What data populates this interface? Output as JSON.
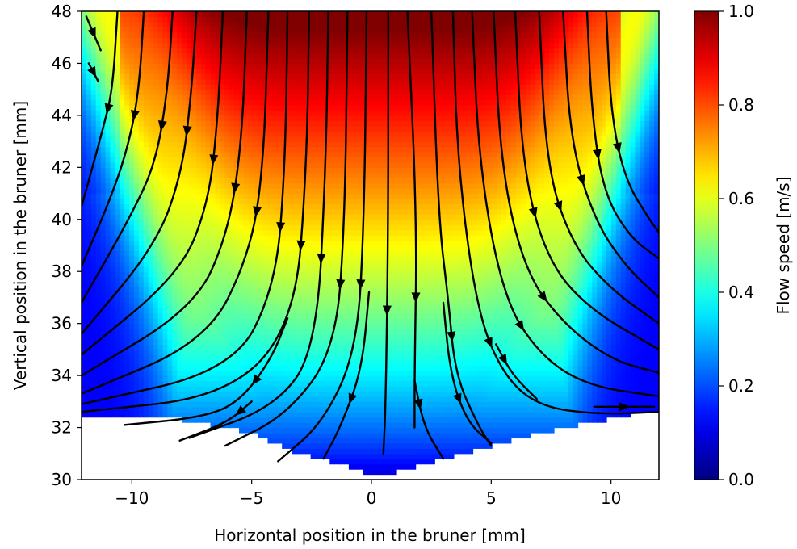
{
  "chart_data": {
    "type": "heatmap",
    "title": "",
    "xlabel": "Horizontal position in the bruner [mm]",
    "ylabel": "Vertical position in the bruner [mm]",
    "xlim": [
      -12.1,
      12.0
    ],
    "ylim": [
      30,
      48
    ],
    "xticks": [
      -10,
      -5,
      0,
      5,
      10
    ],
    "xtick_labels": [
      "−10",
      "−5",
      "0",
      "5",
      "10"
    ],
    "yticks": [
      30,
      32,
      34,
      36,
      38,
      40,
      42,
      44,
      46,
      48
    ],
    "ytick_labels": [
      "30",
      "32",
      "34",
      "36",
      "38",
      "40",
      "42",
      "44",
      "46",
      "48"
    ],
    "grid": false,
    "colormap": "jet",
    "colorbar": {
      "label": "Flow speed [m/s]",
      "range": [
        0.0,
        1.0
      ],
      "ticks": [
        0.0,
        0.2,
        0.4,
        0.6,
        0.8,
        1.0
      ],
      "tick_labels": [
        "0.0",
        "0.2",
        "0.4",
        "0.6",
        "0.8",
        "1.0"
      ]
    },
    "field": {
      "description_values": "flow speed, max near top center (~1.0), decreasing toward bottom and sides",
      "stagnation_boundary_y_at_x": [
        [
          -12,
          32.5
        ],
        [
          -8,
          32.3
        ],
        [
          -5,
          31.8
        ],
        [
          -3,
          31.0
        ],
        [
          -1,
          30.5
        ],
        [
          0,
          30.2
        ],
        [
          1,
          30.3
        ],
        [
          3,
          30.8
        ],
        [
          5,
          31.3
        ],
        [
          8,
          32.0
        ],
        [
          12,
          32.7
        ]
      ]
    },
    "streamlines": [
      [
        [
          -11.9,
          47.8
        ],
        [
          -11.3,
          46.5
        ]
      ],
      [
        [
          -11.8,
          46.0
        ],
        [
          -11.4,
          45.3
        ]
      ],
      [
        [
          -10.6,
          48
        ],
        [
          -10.8,
          45
        ],
        [
          -11.2,
          43.5
        ],
        [
          -12.1,
          40.5
        ]
      ],
      [
        [
          -9.5,
          48
        ],
        [
          -9.7,
          45
        ],
        [
          -10.1,
          43
        ],
        [
          -10.8,
          41
        ],
        [
          -12.1,
          38.2
        ]
      ],
      [
        [
          -8.3,
          48
        ],
        [
          -8.5,
          45
        ],
        [
          -9.0,
          42.2
        ],
        [
          -10.0,
          40.2
        ],
        [
          -12.1,
          36.8
        ]
      ],
      [
        [
          -7.3,
          48
        ],
        [
          -7.5,
          45
        ],
        [
          -7.9,
          41.8
        ],
        [
          -9.0,
          39.0
        ],
        [
          -12.1,
          35.6
        ]
      ],
      [
        [
          -6.2,
          48
        ],
        [
          -6.4,
          44
        ],
        [
          -6.8,
          40.6
        ],
        [
          -8.0,
          37.9
        ],
        [
          -12.1,
          34.8
        ]
      ],
      [
        [
          -5.2,
          48
        ],
        [
          -5.4,
          43
        ],
        [
          -6.0,
          39.4
        ],
        [
          -7.4,
          36.6
        ],
        [
          -12.1,
          34.0
        ]
      ],
      [
        [
          -4.3,
          48
        ],
        [
          -4.5,
          42
        ],
        [
          -5.1,
          38.6
        ],
        [
          -6.9,
          35.3
        ],
        [
          -12.1,
          33.3
        ]
      ],
      [
        [
          -3.5,
          48
        ],
        [
          -3.6,
          42
        ],
        [
          -4.0,
          37.4
        ],
        [
          -5.8,
          34.2
        ],
        [
          -12.1,
          32.9
        ]
      ],
      [
        [
          -2.6,
          48
        ],
        [
          -2.7,
          42
        ],
        [
          -3.2,
          36.0
        ],
        [
          -6.0,
          33.2
        ],
        [
          -12.1,
          32.6
        ]
      ],
      [
        [
          -1.8,
          48
        ],
        [
          -1.9,
          42
        ],
        [
          -2.3,
          35.0
        ],
        [
          -4.0,
          32.8
        ],
        [
          -7.6,
          31.6
        ]
      ],
      [
        [
          -3.5,
          36.2
        ],
        [
          -4.2,
          34.6
        ],
        [
          -5.5,
          33.0
        ],
        [
          -7.0,
          32.4
        ],
        [
          -10.3,
          32.1
        ]
      ],
      [
        [
          -5.0,
          33.0
        ],
        [
          -6.0,
          32.2
        ],
        [
          -8.0,
          31.5
        ]
      ],
      [
        [
          -1.0,
          48
        ],
        [
          -1.1,
          40
        ],
        [
          -1.5,
          35.0
        ],
        [
          -3.5,
          32.5
        ],
        [
          -6.1,
          31.3
        ]
      ],
      [
        [
          -0.2,
          48
        ],
        [
          -0.3,
          40
        ],
        [
          -0.6,
          35.0
        ],
        [
          -2.0,
          32.2
        ],
        [
          -3.9,
          30.7
        ]
      ],
      [
        [
          -0.1,
          37.2
        ],
        [
          -0.4,
          34.2
        ],
        [
          -1.3,
          32.0
        ],
        [
          -2.0,
          30.8
        ]
      ],
      [
        [
          0.7,
          48
        ],
        [
          0.7,
          40
        ],
        [
          0.6,
          33
        ],
        [
          0.5,
          31.0
        ]
      ],
      [
        [
          1.5,
          48
        ],
        [
          1.9,
          40
        ],
        [
          1.8,
          34
        ],
        [
          1.8,
          32.0
        ]
      ],
      [
        [
          1.8,
          33.8
        ],
        [
          2.2,
          32.0
        ],
        [
          3.0,
          30.8
        ]
      ],
      [
        [
          2.5,
          48
        ],
        [
          2.8,
          40
        ],
        [
          3.2,
          37.0
        ],
        [
          3.5,
          34.0
        ],
        [
          4.5,
          32.0
        ],
        [
          5.0,
          31.3
        ]
      ],
      [
        [
          3.0,
          36.8
        ],
        [
          3.3,
          34.0
        ],
        [
          4.0,
          32.2
        ],
        [
          5.0,
          31.4
        ]
      ],
      [
        [
          3.4,
          48
        ],
        [
          3.6,
          42
        ],
        [
          4.4,
          36.5
        ],
        [
          5.5,
          34.0
        ],
        [
          7.0,
          32.8
        ],
        [
          9.5,
          32.5
        ],
        [
          12.0,
          32.6
        ]
      ],
      [
        [
          4.2,
          48
        ],
        [
          4.5,
          42
        ],
        [
          5.5,
          37.0
        ],
        [
          7.0,
          34.8
        ],
        [
          9.0,
          33.6
        ],
        [
          12.0,
          33.2
        ]
      ],
      [
        [
          5.1,
          48
        ],
        [
          5.4,
          42
        ],
        [
          6.4,
          38.0
        ],
        [
          8.0,
          36.0
        ],
        [
          10.0,
          34.6
        ],
        [
          12.0,
          34.1
        ]
      ],
      [
        [
          6.0,
          48
        ],
        [
          6.3,
          42
        ],
        [
          7.3,
          38.5
        ],
        [
          9.0,
          36.6
        ],
        [
          12.0,
          35.0
        ]
      ],
      [
        [
          7.0,
          48
        ],
        [
          7.3,
          42
        ],
        [
          8.4,
          39.0
        ],
        [
          10.0,
          37.3
        ],
        [
          12.0,
          36.0
        ]
      ],
      [
        [
          8.0,
          48
        ],
        [
          8.3,
          43
        ],
        [
          9.3,
          40.0
        ],
        [
          10.6,
          38.2
        ],
        [
          12.0,
          37.0
        ]
      ],
      [
        [
          9.0,
          48
        ],
        [
          9.2,
          44
        ],
        [
          9.7,
          41.0
        ],
        [
          10.8,
          39.3
        ],
        [
          12.0,
          38.5
        ]
      ],
      [
        [
          9.8,
          48
        ],
        [
          10.0,
          44
        ],
        [
          10.6,
          41.5
        ],
        [
          11.6,
          40.0
        ],
        [
          12.0,
          39.5
        ]
      ],
      [
        [
          5.2,
          35.2
        ],
        [
          5.9,
          34.0
        ],
        [
          6.9,
          33.1
        ]
      ],
      [
        [
          9.3,
          32.8
        ],
        [
          11.8,
          32.8
        ]
      ]
    ]
  }
}
